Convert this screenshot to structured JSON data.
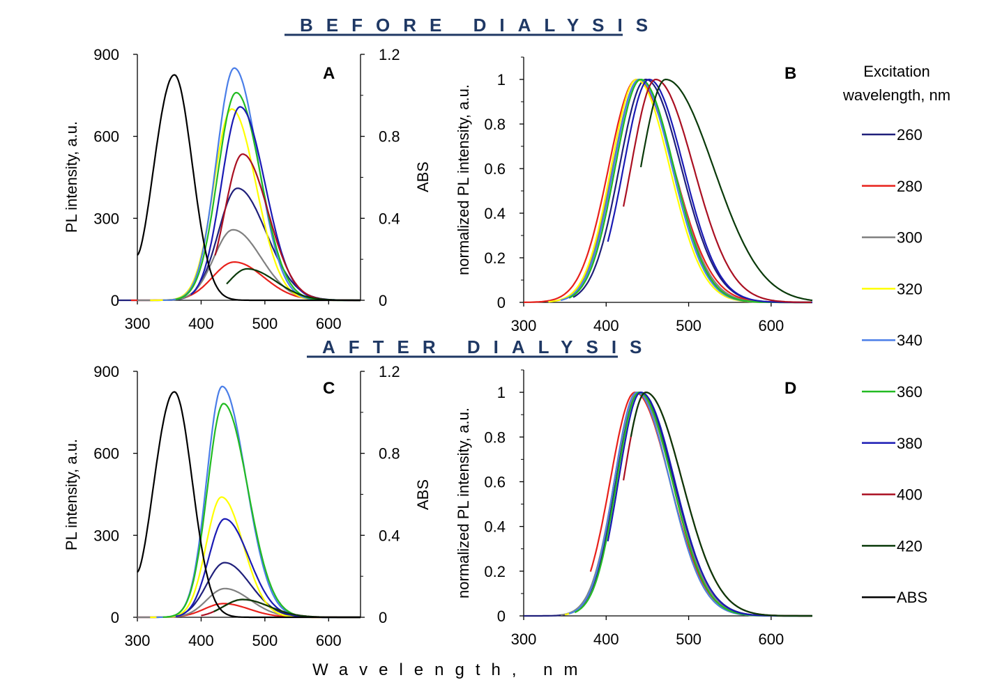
{
  "titles": {
    "before": "BEFORE DIALYSIS",
    "after": "AFTER DIALYSIS"
  },
  "common_xlabel": "Wavelength, nm",
  "legend": {
    "title_line1": "Excitation",
    "title_line2": "wavelength, nm",
    "items": [
      {
        "label": "260",
        "color": "#1f1f7a"
      },
      {
        "label": "280",
        "color": "#e8201a"
      },
      {
        "label": "300",
        "color": "#808080"
      },
      {
        "label": "320",
        "color": "#ffff00"
      },
      {
        "label": "340",
        "color": "#4a7ee8"
      },
      {
        "label": "360",
        "color": "#22bb22"
      },
      {
        "label": "380",
        "color": "#1a1ab4"
      },
      {
        "label": "400",
        "color": "#aa1022"
      },
      {
        "label": "420",
        "color": "#0a3a0a"
      },
      {
        "label": "ABS",
        "color": "#000000"
      }
    ]
  },
  "chart_data": [
    {
      "panel": "A",
      "type": "line",
      "xlabel": "",
      "ylabel": "PL intensity, a.u.",
      "y2label": "ABS",
      "xlim": [
        300,
        650
      ],
      "ylim": [
        0,
        900
      ],
      "y2lim": [
        0,
        1.2
      ],
      "xticks": [
        300,
        400,
        500,
        600
      ],
      "yticks": [
        0,
        300,
        600,
        900
      ],
      "y2ticks": [
        "0",
        "0.4",
        "0.8",
        "1.2"
      ],
      "abs_series": {
        "name": "ABS",
        "peak_x": 358,
        "peak_y": 1.1,
        "start_x": 300,
        "start_y": 0.22,
        "fall_width": 28,
        "rise_width": 33
      },
      "series": [
        {
          "name": "260",
          "peak_x": 457,
          "peak": 410,
          "start_x": 270,
          "rise_w": 30,
          "fall_w": 45
        },
        {
          "name": "280",
          "peak_x": 452,
          "peak": 140,
          "start_x": 290,
          "rise_w": 34,
          "fall_w": 46
        },
        {
          "name": "300",
          "peak_x": 450,
          "peak": 258,
          "start_x": 300,
          "rise_w": 30,
          "fall_w": 44
        },
        {
          "name": "320",
          "peak_x": 448,
          "peak": 700,
          "start_x": 320,
          "rise_w": 28,
          "fall_w": 38
        },
        {
          "name": "340",
          "peak_x": 452,
          "peak": 850,
          "start_x": 340,
          "rise_w": 28,
          "fall_w": 37
        },
        {
          "name": "360",
          "peak_x": 455,
          "peak": 760,
          "start_x": 360,
          "rise_w": 29,
          "fall_w": 38
        },
        {
          "name": "380",
          "peak_x": 461,
          "peak": 708,
          "start_x": 384,
          "rise_w": 29,
          "fall_w": 39
        },
        {
          "name": "400",
          "peak_x": 465,
          "peak": 535,
          "start_x": 422,
          "rise_w": 28,
          "fall_w": 40
        },
        {
          "name": "420",
          "peak_x": 472,
          "peak": 115,
          "start_x": 440,
          "rise_w": 28,
          "fall_w": 45
        }
      ]
    },
    {
      "panel": "B",
      "type": "line",
      "xlabel": "",
      "ylabel": "normalized PL intensity, a.u.",
      "xlim": [
        300,
        650
      ],
      "ylim": [
        0,
        1.1
      ],
      "xticks": [
        300,
        400,
        500,
        600
      ],
      "yticks": [
        "0",
        "0.2",
        "0.4",
        "0.6",
        "0.8",
        "1"
      ],
      "series": [
        {
          "name": "260",
          "peak_x": 448,
          "start_x": 360,
          "rise_w": 32,
          "fall_w": 43
        },
        {
          "name": "280",
          "peak_x": 437,
          "start_x": 300,
          "rise_w": 34,
          "fall_w": 45
        },
        {
          "name": "300",
          "peak_x": 440,
          "start_x": 330,
          "rise_w": 32,
          "fall_w": 42
        },
        {
          "name": "320",
          "peak_x": 437,
          "start_x": 330,
          "rise_w": 31,
          "fall_w": 40
        },
        {
          "name": "340",
          "peak_x": 440,
          "start_x": 345,
          "rise_w": 31,
          "fall_w": 40
        },
        {
          "name": "360",
          "peak_x": 442,
          "start_x": 355,
          "rise_w": 31,
          "fall_w": 40
        },
        {
          "name": "380",
          "peak_x": 452,
          "start_x": 402,
          "rise_w": 31,
          "fall_w": 42
        },
        {
          "name": "400",
          "peak_x": 460,
          "start_x": 421,
          "rise_w": 30,
          "fall_w": 46
        },
        {
          "name": "420",
          "peak_x": 472,
          "start_x": 442,
          "rise_w": 30,
          "fall_w": 58
        }
      ]
    },
    {
      "panel": "C",
      "type": "line",
      "xlabel": "",
      "ylabel": "PL intensity, a.u.",
      "y2label": "ABS",
      "xlim": [
        300,
        650
      ],
      "ylim": [
        0,
        900
      ],
      "y2lim": [
        0,
        1.2
      ],
      "xticks": [
        300,
        400,
        500,
        600
      ],
      "yticks": [
        0,
        300,
        600,
        900
      ],
      "y2ticks": [
        "0",
        "0.4",
        "0.8",
        "1.2"
      ],
      "abs_series": {
        "name": "ABS",
        "peak_x": 358,
        "peak_y": 1.1,
        "start_x": 300,
        "start_y": 0.22,
        "fall_width": 28,
        "rise_width": 33
      },
      "series": [
        {
          "name": "260",
          "peak_x": 437,
          "peak": 200,
          "start_x": 300,
          "rise_w": 28,
          "fall_w": 40
        },
        {
          "name": "280",
          "peak_x": 435,
          "peak": 50,
          "start_x": 300,
          "rise_w": 30,
          "fall_w": 40
        },
        {
          "name": "300",
          "peak_x": 437,
          "peak": 105,
          "start_x": 300,
          "rise_w": 28,
          "fall_w": 40
        },
        {
          "name": "320",
          "peak_x": 432,
          "peak": 440,
          "start_x": 320,
          "rise_w": 24,
          "fall_w": 34
        },
        {
          "name": "340",
          "peak_x": 433,
          "peak": 845,
          "start_x": 330,
          "rise_w": 24,
          "fall_w": 37
        },
        {
          "name": "360",
          "peak_x": 435,
          "peak": 782,
          "start_x": 340,
          "rise_w": 25,
          "fall_w": 38
        },
        {
          "name": "380",
          "peak_x": 437,
          "peak": 360,
          "start_x": 360,
          "rise_w": 25,
          "fall_w": 38
        },
        {
          "name": "400",
          "peak_x": 465,
          "peak": 65,
          "start_x": 400,
          "rise_w": 30,
          "fall_w": 42
        },
        {
          "name": "420",
          "peak_x": 465,
          "peak": 65,
          "start_x": 420,
          "rise_w": 30,
          "fall_w": 42
        }
      ]
    },
    {
      "panel": "D",
      "type": "line",
      "xlabel": "",
      "ylabel": "normalized PL intensity, a.u.",
      "xlim": [
        300,
        650
      ],
      "ylim": [
        0,
        1.1
      ],
      "xticks": [
        300,
        400,
        500,
        600
      ],
      "yticks": [
        "0",
        "0.2",
        "0.4",
        "0.6",
        "0.8",
        "1"
      ],
      "series": [
        {
          "name": "260",
          "peak_x": 440,
          "start_x": 300,
          "rise_w": 28,
          "fall_w": 42
        },
        {
          "name": "280",
          "peak_x": 435,
          "start_x": 381,
          "rise_w": 30,
          "fall_w": 42
        },
        {
          "name": "300",
          "peak_x": 438,
          "start_x": 345,
          "rise_w": 28,
          "fall_w": 42
        },
        {
          "name": "320",
          "peak_x": 437,
          "start_x": 350,
          "rise_w": 27,
          "fall_w": 40
        },
        {
          "name": "340",
          "peak_x": 437,
          "start_x": 355,
          "rise_w": 27,
          "fall_w": 40
        },
        {
          "name": "360",
          "peak_x": 440,
          "start_x": 362,
          "rise_w": 27,
          "fall_w": 40
        },
        {
          "name": "380",
          "peak_x": 442,
          "start_x": 402,
          "rise_w": 27,
          "fall_w": 41
        },
        {
          "name": "400",
          "peak_x": 448,
          "start_x": 421,
          "rise_w": 27,
          "fall_w": 44
        },
        {
          "name": "420",
          "peak_x": 448,
          "start_x": 430,
          "rise_w": 27,
          "fall_w": 44
        }
      ]
    }
  ]
}
